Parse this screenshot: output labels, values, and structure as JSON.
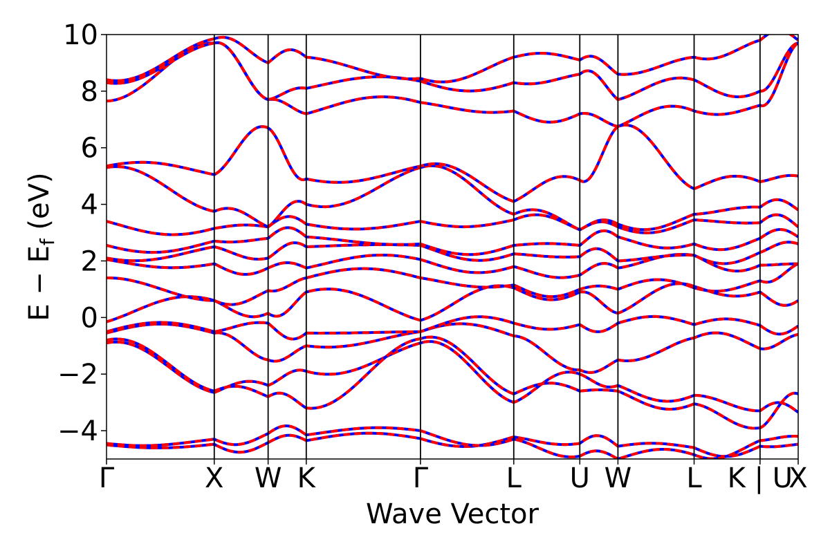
{
  "chart_data": {
    "type": "line",
    "title": "",
    "xlabel": "Wave Vector",
    "ylabel_main": "E − E",
    "ylabel_sub": "f",
    "ylabel_unit": " (eV)",
    "ylim": [
      -5,
      10
    ],
    "yticks": [
      -4,
      -2,
      0,
      2,
      4,
      6,
      8,
      10
    ],
    "ytick_labels": [
      "−4",
      "−2",
      "0",
      "2",
      "4",
      "6",
      "8",
      "10"
    ],
    "kpoints": [
      {
        "label": "Γ",
        "x": 0.0
      },
      {
        "label": "X",
        "x": 1.0
      },
      {
        "label": "W",
        "x": 1.5
      },
      {
        "label": "K",
        "x": 1.854
      },
      {
        "label": "Γ",
        "x": 2.914
      },
      {
        "label": "L",
        "x": 3.78
      },
      {
        "label": "U",
        "x": 4.393
      },
      {
        "label": "W",
        "x": 4.747
      },
      {
        "label": "L",
        "x": 5.454
      },
      {
        "label": "K | U",
        "x": 6.066
      },
      {
        "label": "X",
        "x": 6.42
      }
    ],
    "xlim": [
      0,
      6.42
    ],
    "series_styles": [
      {
        "role": "reference",
        "color": "#0000ff",
        "dash": "solid"
      },
      {
        "role": "overlay",
        "color": "#ff0000",
        "dash": "dashed"
      }
    ],
    "bands": [
      [
        -4.5,
        -4.48,
        -4.42,
        -4.35,
        -4.28,
        -4.22,
        -4.45,
        -4.55,
        -4.6,
        -4.55,
        -4.48
      ],
      [
        -4.45,
        -4.3,
        -4.1,
        -4.15,
        -4.0,
        -4.3,
        -4.9,
        -5.0,
        -4.85,
        -4.35,
        -4.2
      ],
      [
        -0.9,
        -2.65,
        -2.4,
        -1.9,
        -0.9,
        -3.0,
        -2.0,
        -2.4,
        -2.75,
        -3.3,
        -3.35
      ],
      [
        -0.8,
        -2.6,
        -2.8,
        -3.2,
        -0.75,
        -2.7,
        -2.6,
        -2.6,
        -3.05,
        -3.9,
        -2.7
      ],
      [
        -0.55,
        -0.55,
        -1.5,
        -1.0,
        -0.5,
        -0.65,
        -1.85,
        -1.5,
        -0.72,
        -1.1,
        -0.6
      ],
      [
        -0.5,
        -0.5,
        -0.2,
        -0.55,
        -0.5,
        -0.2,
        -0.25,
        -0.2,
        -0.25,
        -0.28,
        -0.3
      ],
      [
        -0.15,
        0.6,
        0.15,
        0.9,
        -0.1,
        1.05,
        0.9,
        0.15,
        1.1,
        0.9,
        0.6
      ],
      [
        1.4,
        0.6,
        0.95,
        1.4,
        1.4,
        1.15,
        1.0,
        1.0,
        1.05,
        1.3,
        1.9
      ],
      [
        2.05,
        1.9,
        1.75,
        1.75,
        2.05,
        1.8,
        1.5,
        1.75,
        2.2,
        1.85,
        1.9
      ],
      [
        2.1,
        2.5,
        2.1,
        2.5,
        2.55,
        2.25,
        2.15,
        2.0,
        2.2,
        2.3,
        2.6
      ],
      [
        2.55,
        2.7,
        2.8,
        2.85,
        2.6,
        2.55,
        2.55,
        2.85,
        2.6,
        2.8,
        2.85
      ],
      [
        3.4,
        3.15,
        3.2,
        3.3,
        3.4,
        3.45,
        3.1,
        3.2,
        3.45,
        3.35,
        3.2
      ],
      [
        5.3,
        3.75,
        3.2,
        4.0,
        5.3,
        3.65,
        3.1,
        3.3,
        3.65,
        3.9,
        3.8
      ],
      [
        5.35,
        5.05,
        6.7,
        4.9,
        5.35,
        4.1,
        4.85,
        6.75,
        4.55,
        4.8,
        5.0
      ],
      [
        7.65,
        9.7,
        7.7,
        7.2,
        7.6,
        7.3,
        7.2,
        6.75,
        7.3,
        7.5,
        9.7
      ],
      [
        8.3,
        9.7,
        7.7,
        8.1,
        8.35,
        8.3,
        8.6,
        7.7,
        8.4,
        8.0,
        9.7
      ],
      [
        8.4,
        9.85,
        9.0,
        9.2,
        8.45,
        9.2,
        9.1,
        8.6,
        9.2,
        9.8,
        9.8
      ]
    ]
  }
}
